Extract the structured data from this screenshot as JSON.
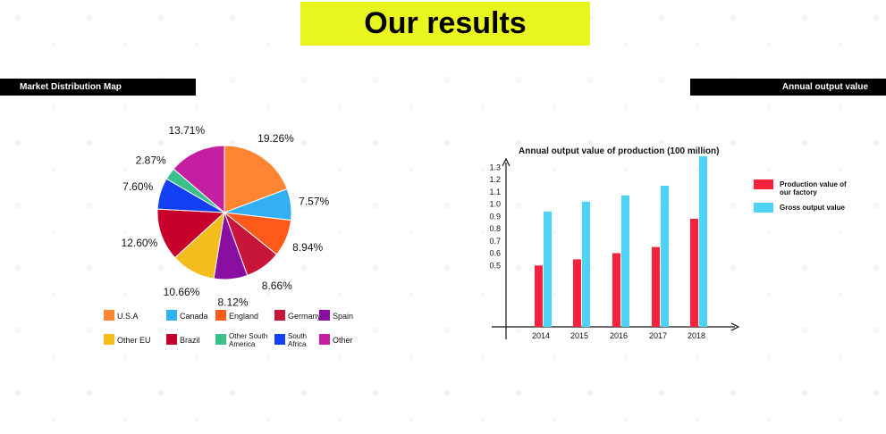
{
  "header": {
    "title": "Our results"
  },
  "sections": {
    "left_label": "Market Distribution Map",
    "right_label": "Annual output value"
  },
  "chart_data": [
    {
      "type": "pie",
      "title": "",
      "slices": [
        {
          "label": "U.S.A",
          "value": 19.26,
          "pct_label": "19.26%",
          "color": "#ff8533"
        },
        {
          "label": "Canada",
          "value": 7.57,
          "pct_label": "7.57%",
          "color": "#33b0f5"
        },
        {
          "label": "England",
          "value": 8.94,
          "pct_label": "8.94%",
          "color": "#ff5a1a"
        },
        {
          "label": "Germany",
          "value": 8.66,
          "pct_label": "8.66%",
          "color": "#c8163a"
        },
        {
          "label": "Spain",
          "value": 8.12,
          "pct_label": "8.12%",
          "color": "#8a0fa0"
        },
        {
          "label": "Other EU",
          "value": 10.66,
          "pct_label": "10.66%",
          "color": "#f5bc1e"
        },
        {
          "label": "Brazil",
          "value": 12.6,
          "pct_label": "12.60%",
          "color": "#c8002c"
        },
        {
          "label": "South Africa",
          "value": 7.6,
          "pct_label": "7.60%",
          "color": "#1340f5"
        },
        {
          "label": "Other South America",
          "value": 2.87,
          "pct_label": "2.87%",
          "color": "#3cc08a"
        },
        {
          "label": "Other",
          "value": 13.71,
          "pct_label": "13.71%",
          "color": "#c41fa0"
        }
      ],
      "legend": [
        {
          "label": "U.S.A",
          "color": "#ff8533"
        },
        {
          "label": "Canada",
          "color": "#33b0f5"
        },
        {
          "label": "England",
          "color": "#ff5a1a"
        },
        {
          "label": "Germany",
          "color": "#c8163a"
        },
        {
          "label": "Spain",
          "color": "#8a0fa0"
        },
        {
          "label": "Other EU",
          "color": "#f5bc1e"
        },
        {
          "label": "Brazil",
          "color": "#c8002c"
        },
        {
          "label": "Other South America",
          "label_lines": [
            "Other South",
            "America"
          ],
          "color": "#3cc08a"
        },
        {
          "label": "South Africa",
          "label_lines": [
            "South",
            "Africa"
          ],
          "color": "#1340f5"
        },
        {
          "label": "Other",
          "color": "#c41fa0"
        }
      ],
      "legend_placement": "bottom"
    },
    {
      "type": "bar",
      "title": "Annual output value of production (100 million)",
      "categories": [
        "2014",
        "2015",
        "2016",
        "2017",
        "2018"
      ],
      "series": [
        {
          "name": "Production value of our factory",
          "name_lines": [
            "Production value of",
            "our factory"
          ],
          "color": "#f5223c",
          "values": [
            0.5,
            0.55,
            0.6,
            0.65,
            0.88
          ]
        },
        {
          "name": "Gross output value",
          "color": "#4fd3f5",
          "values": [
            0.94,
            1.02,
            1.07,
            1.15,
            1.39
          ]
        }
      ],
      "yticks": [
        0.5,
        0.6,
        0.7,
        0.8,
        0.9,
        1.0,
        1.1,
        1.2,
        1.3
      ],
      "ytick_labels": [
        "0.5",
        "0.6",
        "0.7",
        "0.8",
        "0.9",
        "1.0",
        "1.1",
        "1.2",
        "1.3"
      ],
      "ylim": [
        0.0,
        1.4
      ],
      "grid": false,
      "legend_placement": "right"
    }
  ]
}
